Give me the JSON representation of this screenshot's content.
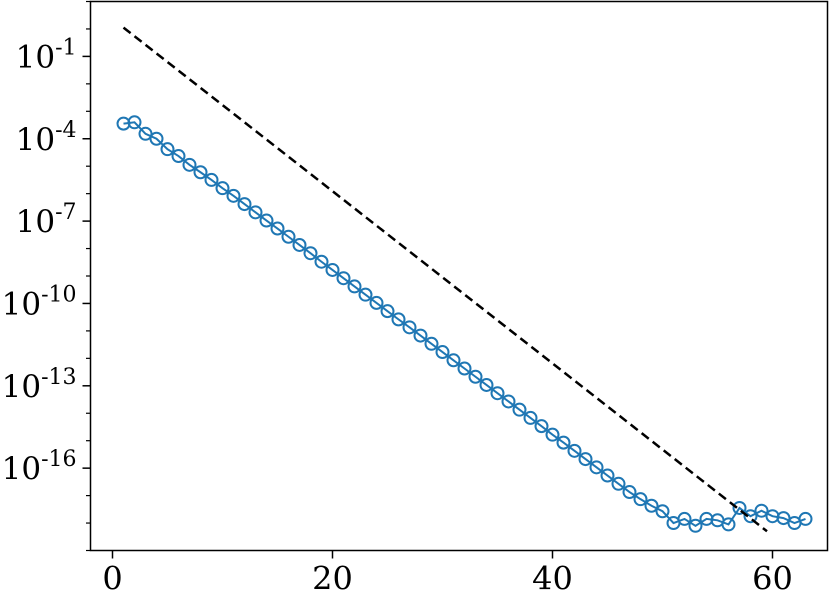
{
  "chart_data": {
    "type": "line",
    "title": "",
    "xlabel": "",
    "ylabel": "",
    "xlim": [
      -2,
      65
    ],
    "ylim": [
      -19,
      1
    ],
    "y_scale": "log10",
    "grid": false,
    "legend": "none",
    "x_ticks": [
      {
        "value": 0,
        "label": "0"
      },
      {
        "value": 20,
        "label": "20"
      },
      {
        "value": 40,
        "label": "40"
      },
      {
        "value": 60,
        "label": "60"
      }
    ],
    "y_ticks": [
      {
        "exp": -1,
        "base": "10",
        "sup": "-1"
      },
      {
        "exp": -4,
        "base": "10",
        "sup": "-4"
      },
      {
        "exp": -7,
        "base": "10",
        "sup": "-7"
      },
      {
        "exp": -10,
        "base": "10",
        "sup": "-10"
      },
      {
        "exp": -13,
        "base": "10",
        "sup": "-13"
      },
      {
        "exp": -16,
        "base": "10",
        "sup": "-16"
      }
    ],
    "series": [
      {
        "style": "line-circle-markers",
        "color": "#1f77b4",
        "x": [
          1,
          2,
          3,
          4,
          5,
          6,
          7,
          8,
          9,
          10,
          11,
          12,
          13,
          14,
          15,
          16,
          17,
          18,
          19,
          20,
          21,
          22,
          23,
          24,
          25,
          26,
          27,
          28,
          29,
          30,
          31,
          32,
          33,
          34,
          35,
          36,
          37,
          38,
          39,
          40,
          41,
          42,
          43,
          44,
          45,
          46,
          47,
          48,
          49,
          50,
          51,
          52,
          53,
          54,
          55,
          56,
          57,
          58,
          59,
          60,
          61,
          62,
          63
        ],
        "log10_y": [
          -3.45,
          -3.4,
          -3.82,
          -4.0,
          -4.38,
          -4.63,
          -4.95,
          -5.22,
          -5.5,
          -5.8,
          -6.08,
          -6.38,
          -6.68,
          -6.98,
          -7.27,
          -7.57,
          -7.87,
          -8.17,
          -8.48,
          -8.78,
          -9.08,
          -9.38,
          -9.68,
          -9.98,
          -10.28,
          -10.58,
          -10.87,
          -11.17,
          -11.47,
          -11.77,
          -12.07,
          -12.37,
          -12.67,
          -12.97,
          -13.27,
          -13.57,
          -13.87,
          -14.17,
          -14.47,
          -14.78,
          -15.07,
          -15.37,
          -15.67,
          -15.97,
          -16.27,
          -16.57,
          -16.87,
          -17.13,
          -17.37,
          -17.57,
          -18.0,
          -17.85,
          -18.1,
          -17.85,
          -17.9,
          -18.05,
          -17.45,
          -17.75,
          -17.55,
          -17.75,
          -17.82,
          -18.0,
          -17.85
        ]
      },
      {
        "style": "dashed-line",
        "color": "#000000",
        "x": [
          1,
          59.5
        ],
        "log10_y": [
          0.05,
          -18.3
        ]
      }
    ]
  }
}
